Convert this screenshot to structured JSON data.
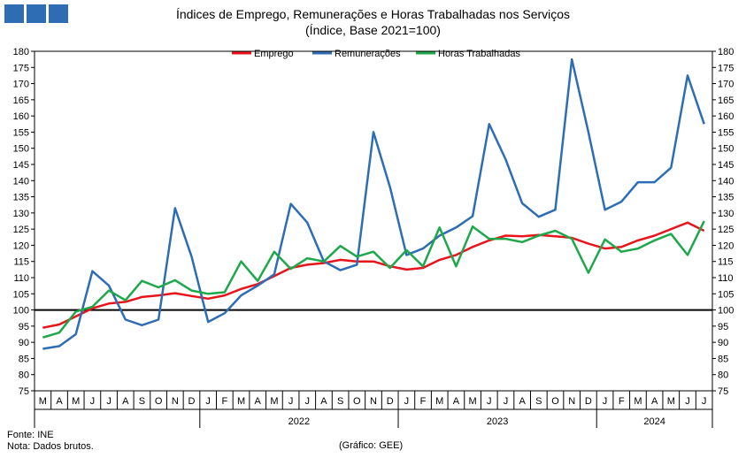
{
  "header": {
    "logo_name": "gee-logo",
    "title": "Índices de Emprego, Remunerações e Horas Trabalhadas nos Serviços",
    "subtitle": "(Índice, Base 2021=100)"
  },
  "footer": {
    "source": "Fonte: INE",
    "note": "Nota: Dados brutos.",
    "credit": "(Gráfico: GEE)"
  },
  "chart_data": {
    "type": "line",
    "title": "Índices de Emprego, Remunerações e Horas Trabalhadas nos Serviços",
    "subtitle": "(Índice, Base 2021=100)",
    "x": [
      "M",
      "A",
      "M",
      "J",
      "J",
      "A",
      "S",
      "O",
      "N",
      "D",
      "J",
      "F",
      "M",
      "A",
      "M",
      "J",
      "J",
      "A",
      "S",
      "O",
      "N",
      "D",
      "J",
      "F",
      "M",
      "A",
      "M",
      "J",
      "J",
      "A",
      "S",
      "O",
      "N",
      "D",
      "J",
      "F",
      "M",
      "A",
      "M",
      "J",
      "J"
    ],
    "year_labels": [
      {
        "label": "2022",
        "start_index": 10,
        "end_index": 21
      },
      {
        "label": "2023",
        "start_index": 22,
        "end_index": 33
      },
      {
        "label": "2024",
        "start_index": 34,
        "end_index": 40
      }
    ],
    "ylim": [
      75,
      180
    ],
    "yticks": [
      75,
      80,
      85,
      90,
      95,
      100,
      105,
      110,
      115,
      120,
      125,
      130,
      135,
      140,
      145,
      150,
      155,
      160,
      165,
      170,
      175,
      180
    ],
    "reference_line": 100,
    "grid": false,
    "legend_position": "top-center",
    "series": [
      {
        "name": "Emprego",
        "color": "#e8141b",
        "values": [
          94.5,
          95.5,
          98.0,
          100.5,
          102.0,
          102.5,
          104.0,
          104.5,
          105.2,
          104.3,
          103.5,
          104.5,
          106.5,
          108.0,
          110.5,
          113.0,
          114.0,
          114.5,
          115.5,
          115.0,
          115.0,
          113.5,
          112.5,
          113.0,
          115.5,
          117.0,
          119.5,
          121.5,
          123.0,
          122.8,
          123.2,
          122.8,
          122.3,
          120.5,
          119.0,
          119.5,
          121.5,
          123.0,
          125.0,
          127.0,
          124.5
        ]
      },
      {
        "name": "Remunerações",
        "color": "#2e6db4",
        "values": [
          88.0,
          88.8,
          92.5,
          112.0,
          107.5,
          97.0,
          95.3,
          97.0,
          131.5,
          116.5,
          96.3,
          99.0,
          104.5,
          107.5,
          111.0,
          132.8,
          127.0,
          115.0,
          112.3,
          114.0,
          155.0,
          138.0,
          117.0,
          119.0,
          123.0,
          125.5,
          129.0,
          157.5,
          146.5,
          133.0,
          128.8,
          131.0,
          177.5,
          155.0,
          131.0,
          133.5,
          139.5,
          139.5,
          144.0,
          172.5,
          157.5
        ]
      },
      {
        "name": "Horas Trabalhadas",
        "color": "#1fa74b",
        "values": [
          91.5,
          93.0,
          99.5,
          101.0,
          106.0,
          103.0,
          109.0,
          107.0,
          109.2,
          106.0,
          105.0,
          105.5,
          115.0,
          109.0,
          118.0,
          112.7,
          116.0,
          115.0,
          119.8,
          116.5,
          118.0,
          113.0,
          118.5,
          113.5,
          125.5,
          113.5,
          125.8,
          122.0,
          122.0,
          121.0,
          123.0,
          124.5,
          122.0,
          111.5,
          121.8,
          118.0,
          119.0,
          121.5,
          123.5,
          117.0,
          127.5
        ]
      }
    ]
  }
}
